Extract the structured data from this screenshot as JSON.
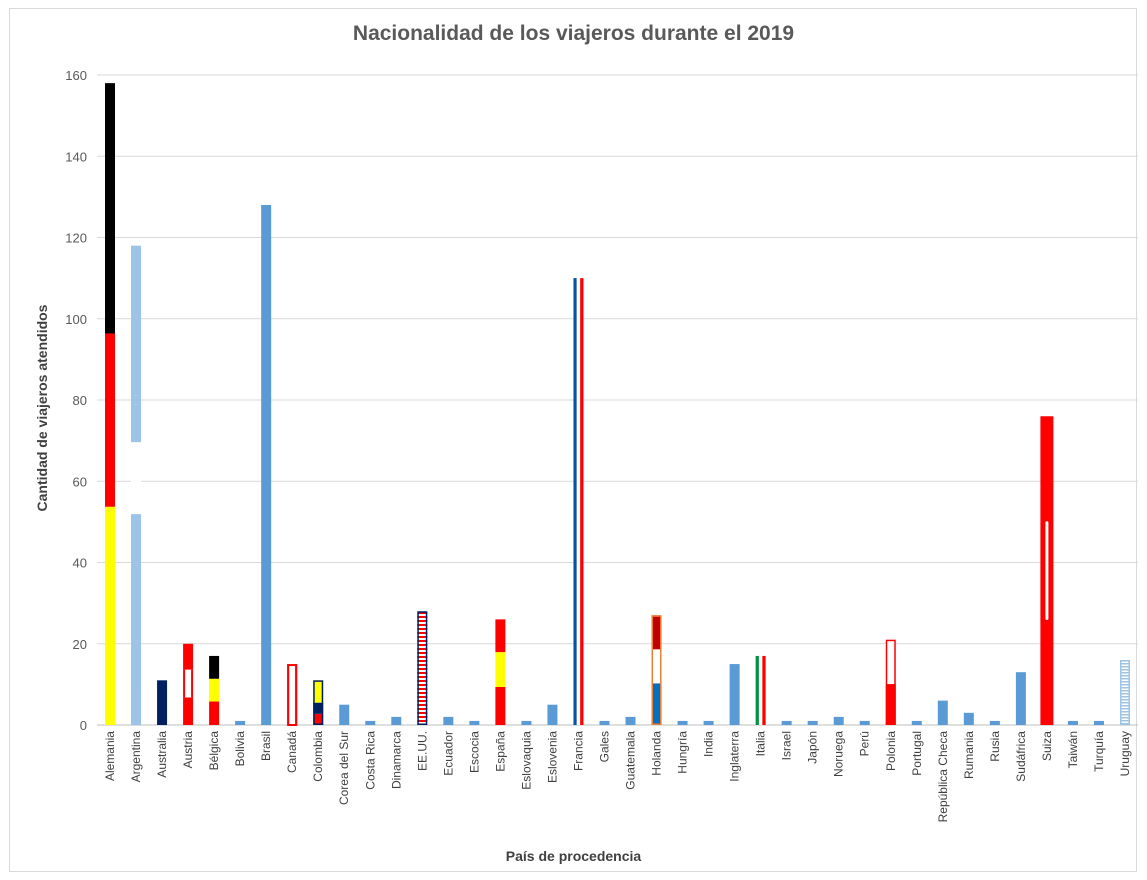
{
  "chart_data": {
    "type": "bar",
    "title": "Nacionalidad de los viajeros durante el 2019",
    "xlabel": "País de procedencia",
    "ylabel": "Cantidad de viajeros atendidos",
    "ylim": [
      0,
      160
    ],
    "yticks": [
      0,
      20,
      40,
      60,
      80,
      100,
      120,
      140,
      160
    ],
    "grid": true,
    "categories": [
      "Alemania",
      "Argentina",
      "Australia",
      "Austria",
      "Bélgica",
      "Bolivia",
      "Brasil",
      "Canadá",
      "Colombia",
      "Corea del Sur",
      "Costa Rica",
      "Dinamarca",
      "EE.UU.",
      "Ecuador",
      "Escocia",
      "España",
      "Eslovaquia",
      "Eslovenia",
      "Francia",
      "Gales",
      "Guatemala",
      "Holanda",
      "Hungría",
      "India",
      "Inglaterra",
      "Italia",
      "Israel",
      "Japón",
      "Noruega",
      "Perú",
      "Polonia",
      "Portugal",
      "República Checa",
      "Rumania",
      "Rusia",
      "Sudáfrica",
      "Suiza",
      "Taiwán",
      "Turquía",
      "Uruguay"
    ],
    "values": [
      158,
      118,
      11,
      20,
      17,
      1,
      128,
      15,
      11,
      5,
      1,
      2,
      28,
      2,
      1,
      26,
      1,
      5,
      110,
      1,
      2,
      27,
      1,
      1,
      15,
      17,
      1,
      1,
      2,
      1,
      21,
      1,
      6,
      3,
      1,
      13,
      76,
      1,
      1,
      16
    ],
    "colors": {
      "default": "#5b9bd5",
      "black": "#000000",
      "red": "#ff0000",
      "yellow": "#ffff00",
      "light_blue": "#9dc3e6",
      "navy": "#002060",
      "french_blue": "#0055a4",
      "green": "#009246",
      "orange": "#ed7d31",
      "dark_red": "#c00000"
    }
  }
}
